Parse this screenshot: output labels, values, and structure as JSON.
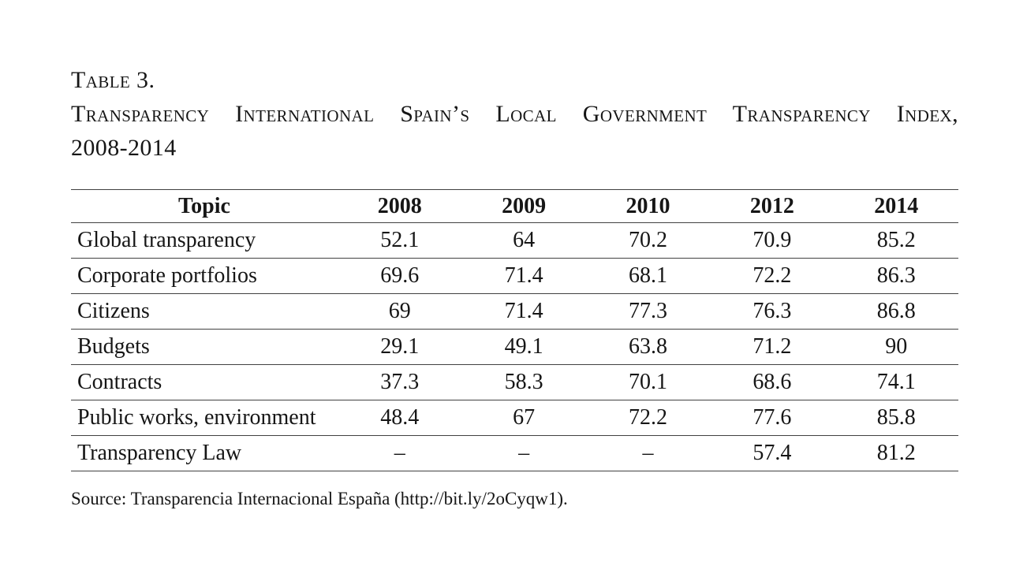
{
  "colors": {
    "background": "#ffffff",
    "text": "#161616",
    "rule": "#414141"
  },
  "title": {
    "label": "Table 3.",
    "caption_line1": "Transparency International Spain’s Local Government Transparency Index,",
    "caption_line2": "2008-2014"
  },
  "table": {
    "columns": [
      "Topic",
      "2008",
      "2009",
      "2010",
      "2012",
      "2014"
    ],
    "rows": [
      [
        "Global transparency",
        "52.1",
        "64",
        "70.2",
        "70.9",
        "85.2"
      ],
      [
        "Corporate portfolios",
        "69.6",
        "71.4",
        "68.1",
        "72.2",
        "86.3"
      ],
      [
        "Citizens",
        "69",
        "71.4",
        "77.3",
        "76.3",
        "86.8"
      ],
      [
        "Budgets",
        "29.1",
        "49.1",
        "63.8",
        "71.2",
        "90"
      ],
      [
        "Contracts",
        "37.3",
        "58.3",
        "70.1",
        "68.6",
        "74.1"
      ],
      [
        "Public works, environment",
        "48.4",
        "67",
        "72.2",
        "77.6",
        "85.8"
      ],
      [
        "Transparency Law",
        "–",
        "–",
        "–",
        "57.4",
        "81.2"
      ]
    ]
  },
  "source": "Source: Transparencia Internacional España (http://bit.ly/2oCyqw1)."
}
